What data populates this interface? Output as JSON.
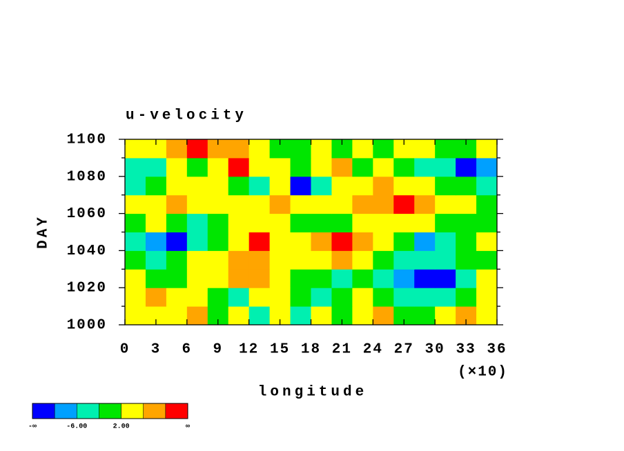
{
  "chart_data": {
    "type": "contour",
    "title": "u-velocity",
    "x_label": "longitude",
    "x_multiplier": "(×10)",
    "y_label": "DAY",
    "xlim": [
      0,
      360
    ],
    "ylim": [
      1000,
      1100
    ],
    "xticks": [
      0,
      {
        "value": 30,
        "label": "3"
      },
      {
        "value": 60,
        "label": "6"
      },
      {
        "value": 90,
        "label": "9"
      },
      {
        "value": 120,
        "label": "12"
      },
      {
        "value": 150,
        "label": "15"
      },
      {
        "value": 180,
        "label": "18"
      },
      {
        "value": 210,
        "label": "21"
      },
      {
        "value": 240,
        "label": "24"
      },
      {
        "value": 270,
        "label": "27"
      },
      {
        "value": 300,
        "label": "30"
      },
      {
        "value": 330,
        "label": "33"
      },
      {
        "value": 360,
        "label": "36"
      }
    ],
    "yticks": [
      1000,
      1020,
      1040,
      1060,
      1080,
      1100
    ],
    "yminor_ticks": [
      1010,
      1030,
      1050,
      1070,
      1090
    ],
    "x": [
      10,
      30,
      50,
      70,
      90,
      110,
      130,
      150,
      170,
      190,
      210,
      230,
      250,
      270,
      290,
      310,
      330,
      350
    ],
    "y": [
      1005,
      1015,
      1025,
      1035,
      1045,
      1055,
      1065,
      1075,
      1085,
      1095
    ],
    "z": [
      [
        3,
        5,
        2,
        6,
        0,
        4,
        -3,
        2,
        -4,
        5,
        -1,
        3,
        7,
        0,
        -2,
        4,
        6,
        2
      ],
      [
        5,
        7,
        4,
        3,
        -1,
        -3,
        2,
        5,
        1,
        -5,
        0,
        3,
        -1,
        -3,
        -5,
        -3,
        0,
        4
      ],
      [
        3,
        1,
        -2,
        2,
        5,
        7,
        6,
        4,
        0,
        -2,
        -4,
        0,
        -3,
        -7,
        -11,
        -10.5,
        -5,
        2
      ],
      [
        0,
        -4,
        -2,
        3,
        5,
        7,
        8,
        4,
        2,
        3,
        6,
        5,
        1,
        -3,
        -5,
        -3,
        0,
        -2
      ],
      [
        -3,
        -7,
        -11,
        -4,
        1,
        4,
        10.5,
        3,
        5,
        7,
        10.5,
        6,
        3,
        -1,
        -7,
        -4,
        -1,
        2
      ],
      [
        1,
        3,
        0,
        -3,
        -1,
        2,
        4,
        3,
        1,
        -2,
        0,
        3,
        4,
        5,
        3,
        1,
        -1,
        0
      ],
      [
        5,
        3,
        6,
        2,
        4,
        5,
        3,
        7,
        4,
        2,
        5,
        6,
        8,
        10.5,
        7,
        4,
        3,
        1
      ],
      [
        -3,
        1,
        4,
        3,
        2,
        -1,
        -4,
        3,
        -11,
        -6,
        2,
        4,
        6,
        5,
        3,
        0,
        -2,
        -4
      ],
      [
        -6,
        -3,
        2,
        0,
        5,
        10.5,
        4,
        2,
        0,
        3,
        6,
        -2,
        3,
        1,
        -3,
        -6,
        -11,
        -8
      ],
      [
        3,
        5,
        6,
        10.5,
        8,
        6,
        3,
        1,
        -1,
        2,
        0,
        3,
        -1,
        2,
        4,
        1,
        -2,
        5
      ]
    ],
    "levels": [
      -10,
      -6,
      -2,
      2,
      6,
      10
    ],
    "colors": [
      "#0000ff",
      "#00a0ff",
      "#00f0b0",
      "#00e600",
      "#ffff00",
      "#ffa500",
      "#ff0000"
    ],
    "colorbar_ticks": [
      {
        "value": -6,
        "label": "-6.00"
      },
      {
        "value": 2,
        "label": "2.00"
      }
    ],
    "colorbar_low_label": "-∞",
    "colorbar_high_label": "∞"
  }
}
